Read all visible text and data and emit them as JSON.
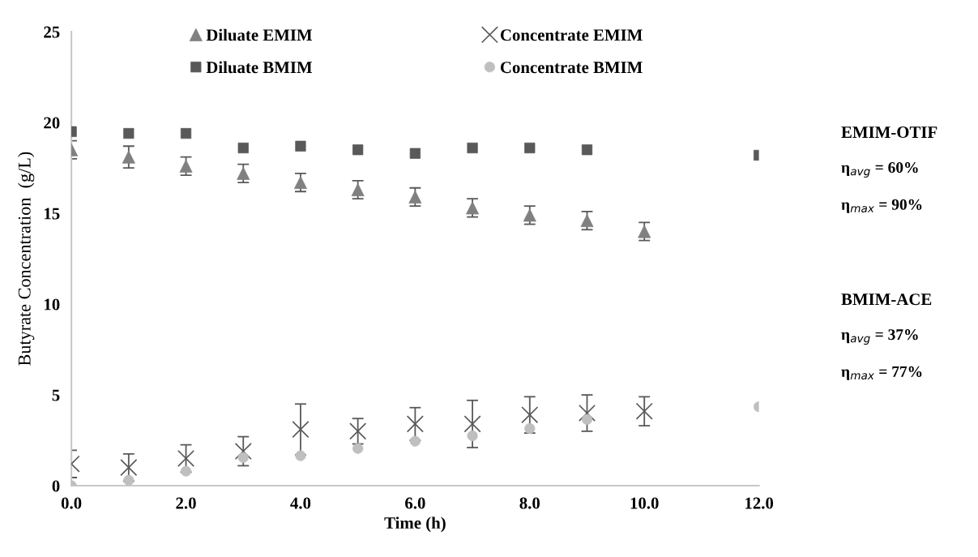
{
  "chart_data": {
    "type": "scatter",
    "xlabel": "Time (h)",
    "ylabel": "Butyrate Concentration  (g/L)",
    "xlim": [
      0,
      12
    ],
    "ylim": [
      0,
      25
    ],
    "xticks": [
      {
        "value": 0,
        "label": "0.0"
      },
      {
        "value": 2,
        "label": "2.0"
      },
      {
        "value": 4,
        "label": "4.0"
      },
      {
        "value": 6,
        "label": "6.0"
      },
      {
        "value": 8,
        "label": "8.0"
      },
      {
        "value": 10,
        "label": "10.0"
      },
      {
        "value": 12,
        "label": "12.0"
      }
    ],
    "yticks": [
      0,
      5,
      10,
      15,
      20,
      25
    ],
    "grid": false,
    "legend": "top",
    "series": [
      {
        "name": "Diluate EMIM",
        "marker": "triangle",
        "color": "#808080",
        "x": [
          0,
          1,
          2,
          3,
          4,
          5,
          6,
          7,
          8,
          9,
          10
        ],
        "values": [
          18.5,
          18.1,
          17.6,
          17.2,
          16.7,
          16.3,
          15.9,
          15.3,
          14.9,
          14.6,
          14.0
        ],
        "errors": [
          0.5,
          0.6,
          0.5,
          0.5,
          0.5,
          0.5,
          0.5,
          0.5,
          0.5,
          0.5,
          0.5
        ]
      },
      {
        "name": "Concentrate EMIM",
        "marker": "cross",
        "color": "#595959",
        "x": [
          0,
          1,
          2,
          3,
          4,
          5,
          6,
          7,
          8,
          9,
          10
        ],
        "values": [
          1.2,
          1.0,
          1.5,
          1.9,
          3.1,
          3.0,
          3.4,
          3.4,
          3.9,
          4.0,
          4.1
        ],
        "errors": [
          0.75,
          0.75,
          0.75,
          0.8,
          1.4,
          0.7,
          0.9,
          1.3,
          1.0,
          1.0,
          0.8
        ]
      },
      {
        "name": "Diluate BMIM",
        "marker": "square",
        "color": "#595959",
        "x": [
          0,
          1,
          2,
          3,
          4,
          5,
          6,
          7,
          8,
          9,
          12
        ],
        "values": [
          19.5,
          19.4,
          19.4,
          18.6,
          18.7,
          18.5,
          18.3,
          18.6,
          18.6,
          18.5,
          18.2
        ]
      },
      {
        "name": "Concentrate BMIM",
        "marker": "circle",
        "color": "#bfbfbf",
        "x": [
          0,
          1,
          2,
          3,
          4,
          5,
          6,
          7,
          8,
          9,
          12
        ],
        "values": [
          0.0,
          0.3,
          0.8,
          1.55,
          1.65,
          2.05,
          2.45,
          2.75,
          3.15,
          3.65,
          4.35
        ]
      }
    ],
    "annotations": [
      "EMIM-OTIF",
      "η$_{avg}$ = 60%",
      "η$_{max}$ = 90%",
      "BMIM-ACE",
      "η$_{avg}$ = 37%",
      "η$_{max}$ = 77%"
    ]
  }
}
